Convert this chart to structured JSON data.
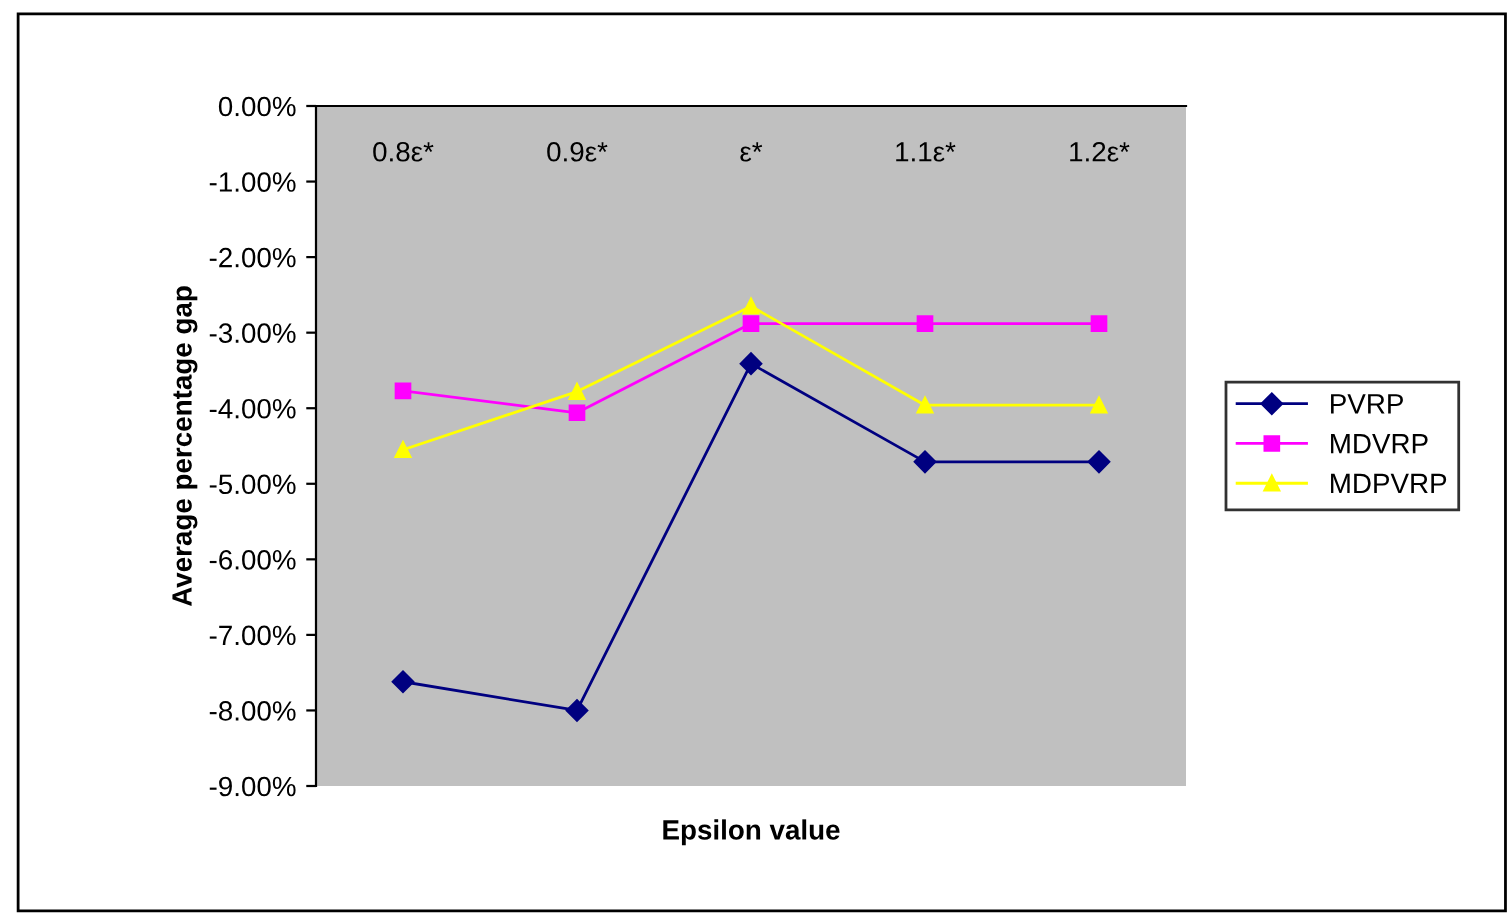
{
  "chart_data": {
    "type": "line",
    "xlabel": "Epsilon value",
    "ylabel": "Average percentage gap",
    "categories": [
      "0.8ε*",
      "0.9ε*",
      "ε*",
      "1.1ε*",
      "1.2ε*"
    ],
    "series": [
      {
        "name": "PVRP",
        "color": "#000080",
        "marker": "diamond",
        "values": [
          -7.62,
          -8.0,
          -3.41,
          -4.71,
          -4.71
        ]
      },
      {
        "name": "MDVRP",
        "color": "#ff00ff",
        "marker": "square",
        "values": [
          -3.77,
          -4.06,
          -2.88,
          -2.88,
          -2.88
        ]
      },
      {
        "name": "MDPVRP",
        "color": "#ffff00",
        "marker": "triangle",
        "values": [
          -4.55,
          -3.78,
          -2.65,
          -3.96,
          -3.96
        ]
      }
    ],
    "ylim": [
      -9,
      0
    ],
    "yticks": [
      {
        "value": 0,
        "label": "0.00%"
      },
      {
        "value": -1,
        "label": "-1.00%"
      },
      {
        "value": -2,
        "label": "-2.00%"
      },
      {
        "value": -3,
        "label": "-3.00%"
      },
      {
        "value": -4,
        "label": "-4.00%"
      },
      {
        "value": -5,
        "label": "-5.00%"
      },
      {
        "value": -6,
        "label": "-6.00%"
      },
      {
        "value": -7,
        "label": "-7.00%"
      },
      {
        "value": -8,
        "label": "-8.00%"
      },
      {
        "value": -9,
        "label": "-9.00%"
      }
    ],
    "grid": false,
    "legend": "right",
    "line_style": "solid"
  }
}
